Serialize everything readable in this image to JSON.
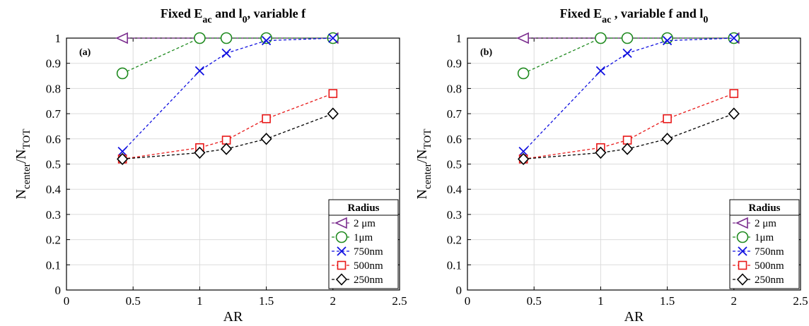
{
  "chart_data": [
    {
      "type": "line",
      "panel_label": "(a)",
      "title": "Fixed E",
      "title_sub": "ac",
      "title_rest": " and l",
      "title_sub2": "0",
      "title_end": ", variable f",
      "xlabel": "AR",
      "ylabel_main": "N",
      "ylabel_sub1": "center",
      "ylabel_mid": "/N",
      "ylabel_sub2": "TOT",
      "xlim": [
        0,
        2.5
      ],
      "ylim": [
        0,
        1
      ],
      "xticks": [
        "0",
        "0.5",
        "1",
        "1.5",
        "2",
        "2.5"
      ],
      "yticks": [
        "0",
        "0.1",
        "0.2",
        "0.3",
        "0.4",
        "0.5",
        "0.6",
        "0.7",
        "0.8",
        "0.9",
        "1"
      ],
      "grid": true,
      "legend_title": "Radius",
      "legend_position": "bottom-right",
      "series": [
        {
          "name": "2 μm",
          "color": "#7b2d8e",
          "marker": "triangle-left",
          "x": [
            0.42,
            2
          ],
          "y": [
            1.0,
            1.0
          ]
        },
        {
          "name": "1μm",
          "color": "#1f8a1f",
          "marker": "circle",
          "x": [
            0.42,
            1,
            1.2,
            1.5,
            2
          ],
          "y": [
            0.86,
            1.0,
            1.0,
            1.0,
            1.0
          ]
        },
        {
          "name": "750nm",
          "color": "#1010e0",
          "marker": "x",
          "x": [
            0.42,
            1,
            1.2,
            1.5,
            2
          ],
          "y": [
            0.55,
            0.87,
            0.94,
            0.99,
            1.0
          ]
        },
        {
          "name": "500nm",
          "color": "#e81818",
          "marker": "square",
          "x": [
            0.42,
            1,
            1.2,
            1.5,
            2
          ],
          "y": [
            0.52,
            0.565,
            0.595,
            0.68,
            0.78
          ]
        },
        {
          "name": "250nm",
          "color": "#000000",
          "marker": "diamond",
          "x": [
            0.42,
            1,
            1.2,
            1.5,
            2
          ],
          "y": [
            0.52,
            0.545,
            0.56,
            0.6,
            0.7
          ]
        }
      ]
    },
    {
      "type": "line",
      "panel_label": "(b)",
      "title": "Fixed E",
      "title_sub": "ac",
      "title_rest": " , variable f and l",
      "title_sub2": "0",
      "title_end": "",
      "xlabel": "AR",
      "ylabel_main": "N",
      "ylabel_sub1": "center",
      "ylabel_mid": "/N",
      "ylabel_sub2": "TOT",
      "xlim": [
        0,
        2.5
      ],
      "ylim": [
        0,
        1
      ],
      "xticks": [
        "0",
        "0.5",
        "1",
        "1.5",
        "2",
        "2.5"
      ],
      "yticks": [
        "0",
        "0.1",
        "0.2",
        "0.3",
        "0.4",
        "0.5",
        "0.6",
        "0.7",
        "0.8",
        "0.9",
        "1"
      ],
      "grid": true,
      "legend_title": "Radius",
      "legend_position": "bottom-right",
      "series": [
        {
          "name": "2 μm",
          "color": "#7b2d8e",
          "marker": "triangle-left",
          "x": [
            0.42,
            2
          ],
          "y": [
            1.0,
            1.0
          ]
        },
        {
          "name": "1μm",
          "color": "#1f8a1f",
          "marker": "circle",
          "x": [
            0.42,
            1,
            1.2,
            1.5,
            2
          ],
          "y": [
            0.86,
            1.0,
            1.0,
            1.0,
            1.0
          ]
        },
        {
          "name": "750nm",
          "color": "#1010e0",
          "marker": "x",
          "x": [
            0.42,
            1,
            1.2,
            1.5,
            2
          ],
          "y": [
            0.55,
            0.87,
            0.94,
            0.99,
            1.0
          ]
        },
        {
          "name": "500nm",
          "color": "#e81818",
          "marker": "square",
          "x": [
            0.42,
            1,
            1.2,
            1.5,
            2
          ],
          "y": [
            0.52,
            0.565,
            0.595,
            0.68,
            0.78
          ]
        },
        {
          "name": "250nm",
          "color": "#000000",
          "marker": "diamond",
          "x": [
            0.42,
            1,
            1.2,
            1.5,
            2
          ],
          "y": [
            0.52,
            0.545,
            0.56,
            0.6,
            0.7
          ]
        }
      ]
    }
  ]
}
